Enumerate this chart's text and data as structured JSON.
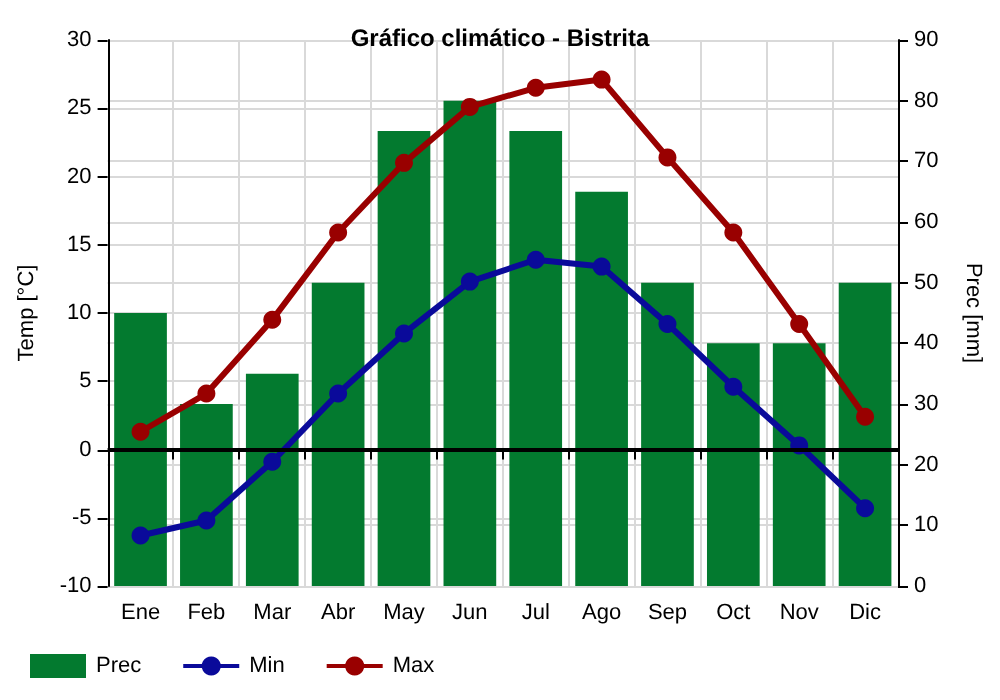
{
  "chart_data": {
    "type": "line",
    "title": "Gráfico climático - Bistrita",
    "ylabel": "Temp [°C]",
    "y2label": "Prec [mm]",
    "categories": [
      "Ene",
      "Feb",
      "Mar",
      "Abr",
      "May",
      "Jun",
      "Jul",
      "Ago",
      "Sep",
      "Oct",
      "Nov",
      "Dic"
    ],
    "series": [
      {
        "name": "Prec",
        "type": "bar",
        "axis": "y2",
        "color": "#037a2f",
        "values": [
          45,
          30,
          35,
          50,
          75,
          80,
          75,
          65,
          50,
          40,
          40,
          50
        ]
      },
      {
        "name": "Min",
        "color": "#0a0a9a",
        "values": [
          -6.3,
          -5.2,
          -0.9,
          4.1,
          8.5,
          12.3,
          13.9,
          13.4,
          9.2,
          4.6,
          0.3,
          -4.3
        ]
      },
      {
        "name": "Max",
        "color": "#990000",
        "values": [
          1.3,
          4.1,
          9.5,
          15.9,
          21,
          25.1,
          26.5,
          27.1,
          21.4,
          15.9,
          9.2,
          2.4
        ]
      }
    ],
    "ylim": [
      -10,
      30
    ],
    "yticks": [
      -10,
      -5,
      0,
      5,
      10,
      15,
      20,
      25,
      30
    ],
    "y2lim": [
      0,
      90
    ],
    "y2ticks": [
      0,
      10,
      20,
      30,
      40,
      50,
      60,
      70,
      80,
      90
    ],
    "ref_lines": [
      {
        "axis": "y",
        "value": 0,
        "color": "#000000"
      }
    ],
    "grid": true,
    "legend": "bottom left",
    "marker": "circle",
    "line_style": "solid"
  }
}
